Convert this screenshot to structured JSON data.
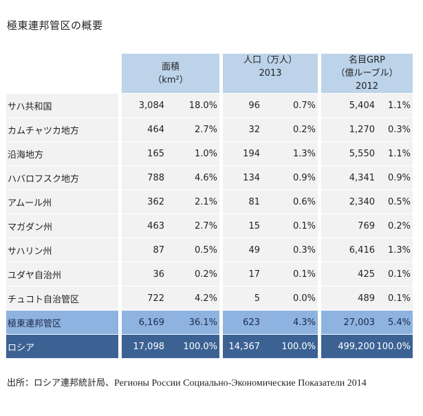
{
  "title": "極東連邦管区の概要",
  "headers": {
    "area_line1": "面積",
    "area_line2": "（km²）",
    "pop_line1": "人口（万人）",
    "pop_line2": "2013",
    "grp_line1": "名目GRP",
    "grp_line2": "（億ルーブル）",
    "grp_line3": "2012"
  },
  "rows": [
    {
      "name": "サハ共和国",
      "area": "3,084",
      "area_pct": "18.0%",
      "pop": "96",
      "pop_pct": "0.7%",
      "grp": "5,404",
      "grp_pct": "1.1%"
    },
    {
      "name": "カムチャツカ地方",
      "area": "464",
      "area_pct": "2.7%",
      "pop": "32",
      "pop_pct": "0.2%",
      "grp": "1,270",
      "grp_pct": "0.3%"
    },
    {
      "name": "沿海地方",
      "area": "165",
      "area_pct": "1.0%",
      "pop": "194",
      "pop_pct": "1.3%",
      "grp": "5,550",
      "grp_pct": "1.1%"
    },
    {
      "name": "ハバロフスク地方",
      "area": "788",
      "area_pct": "4.6%",
      "pop": "134",
      "pop_pct": "0.9%",
      "grp": "4,341",
      "grp_pct": "0.9%"
    },
    {
      "name": "アムール州",
      "area": "362",
      "area_pct": "2.1%",
      "pop": "81",
      "pop_pct": "0.6%",
      "grp": "2,340",
      "grp_pct": "0.5%"
    },
    {
      "name": "マガダン州",
      "area": "463",
      "area_pct": "2.7%",
      "pop": "15",
      "pop_pct": "0.1%",
      "grp": "769",
      "grp_pct": "0.2%"
    },
    {
      "name": "サハリン州",
      "area": "87",
      "area_pct": "0.5%",
      "pop": "49",
      "pop_pct": "0.3%",
      "grp": "6,416",
      "grp_pct": "1.3%"
    },
    {
      "name": "ユダヤ自治州",
      "area": "36",
      "area_pct": "0.2%",
      "pop": "17",
      "pop_pct": "0.1%",
      "grp": "425",
      "grp_pct": "0.1%"
    },
    {
      "name": "チュコト自治管区",
      "area": "722",
      "area_pct": "4.2%",
      "pop": "5",
      "pop_pct": "0.0%",
      "grp": "489",
      "grp_pct": "0.1%"
    }
  ],
  "far_east": {
    "name": "極東連邦管区",
    "area": "6,169",
    "area_pct": "36.1%",
    "pop": "623",
    "pop_pct": "4.3%",
    "grp": "27,003",
    "grp_pct": "5.4%"
  },
  "russia": {
    "name": "ロシア",
    "area": "17,098",
    "area_pct": "100.0%",
    "pop": "14,367",
    "pop_pct": "100.0%",
    "grp": "499,200",
    "grp_pct": "100.0%"
  },
  "source": {
    "prefix": "出所：ロシア連邦統計局、",
    "russian": "Регионы  России Социально-Экономические  Показатели 2014"
  }
}
